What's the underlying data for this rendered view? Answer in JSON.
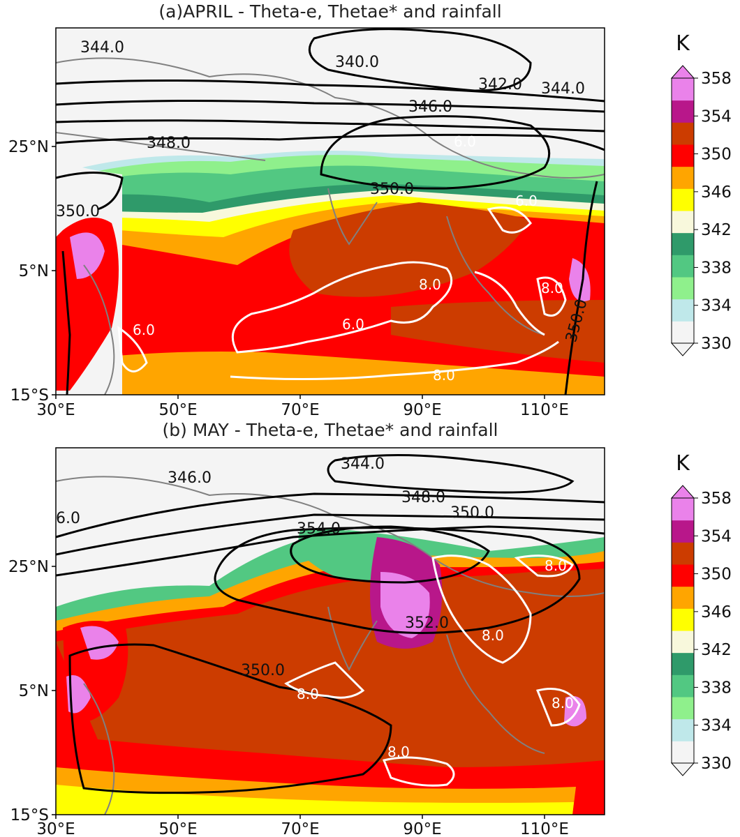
{
  "panels": [
    {
      "title": "(a)APRIL - Theta-e, Thetae* and rainfall",
      "lat_ticks": [
        "25°N",
        "5°N",
        "15°S"
      ],
      "lon_ticks": [
        "30°E",
        "50°E",
        "70°E",
        "90°E",
        "110°E"
      ],
      "contour_labels": [
        "344.0",
        "340.0",
        "342.0",
        "344.0",
        "346.0",
        "348.0",
        "350.0",
        "350.0",
        "350.0"
      ],
      "rain_labels": [
        "6.0",
        "8.0",
        "8.0",
        "6.0",
        "8.0",
        "6.0",
        "6.0"
      ]
    },
    {
      "title": "(b) MAY - Theta-e, Thetae* and rainfall",
      "lat_ticks": [
        "25°N",
        "5°N",
        "15°S"
      ],
      "lon_ticks": [
        "30°E",
        "50°E",
        "70°E",
        "90°E",
        "110°E"
      ],
      "contour_labels": [
        "344.0",
        "346.0",
        "348.0",
        "350.0",
        "354.0",
        "6.0",
        "352.0",
        "350.0"
      ],
      "rain_labels": [
        "8.0",
        "8.0",
        "8.0",
        "8.0",
        "8.0"
      ]
    }
  ],
  "colorbar": {
    "unit": "K",
    "ticks": [
      "358",
      "354",
      "350",
      "346",
      "342",
      "338",
      "334",
      "330"
    ],
    "levels": [
      "#f4f4f4",
      "#bfe8ea",
      "#8ff08c",
      "#52c882",
      "#2f9a6a",
      "#f8f8dc",
      "#ffff00",
      "#ffa500",
      "#ff0000",
      "#cc3c00",
      "#b8178a",
      "#ea82ea"
    ]
  }
}
